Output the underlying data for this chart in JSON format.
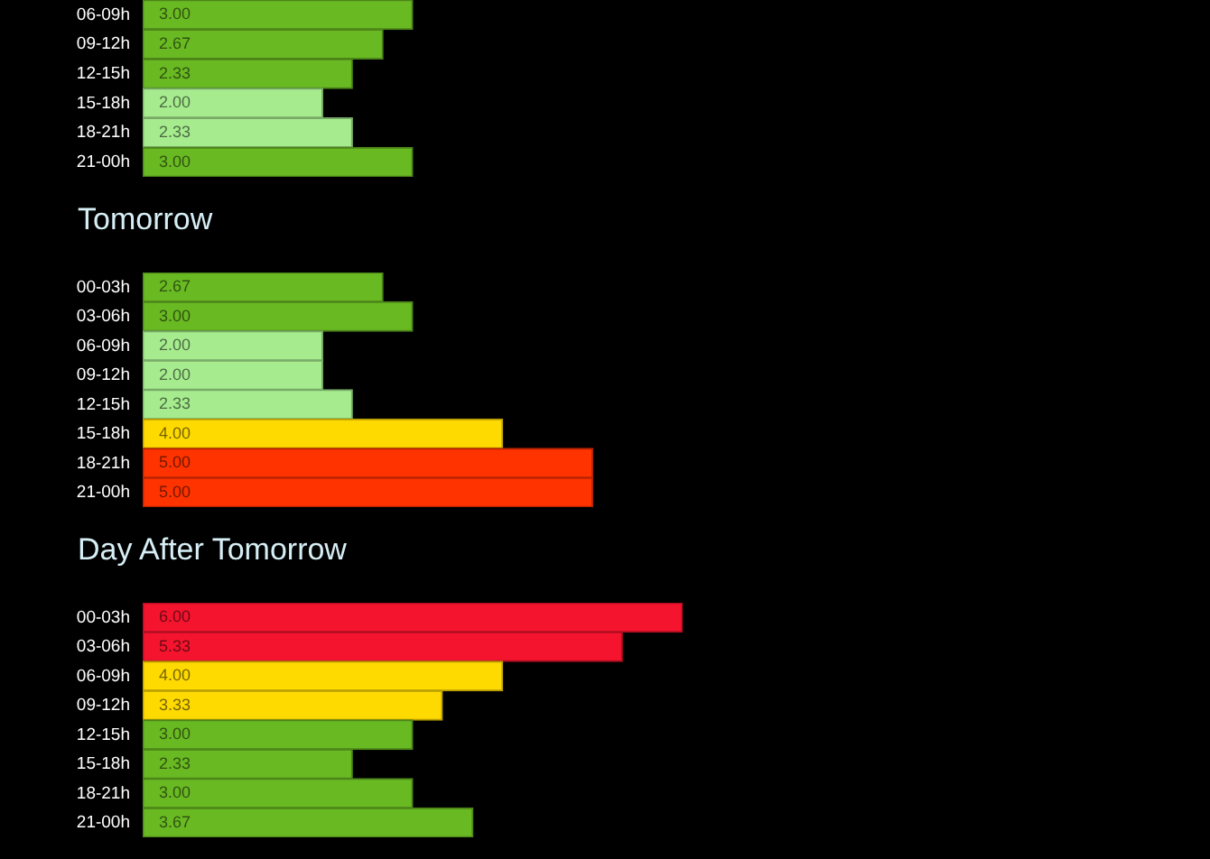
{
  "chart_data": [
    {
      "type": "bar",
      "orientation": "horizontal",
      "categories": [
        "06-09h",
        "09-12h",
        "12-15h",
        "15-18h",
        "18-21h",
        "21-00h"
      ],
      "values": [
        3,
        2.67,
        2.33,
        2,
        2.33,
        3
      ],
      "value_labels": [
        "3.00",
        "2.67",
        "2.33",
        "2.00",
        "2.33",
        "3.00"
      ],
      "colors": [
        "#69b923",
        "#69b923",
        "#69b923",
        "#a6ec8f",
        "#a6ec8f",
        "#69b923"
      ],
      "tick_labels": "y"
    },
    {
      "type": "bar",
      "title": "Tomorrow",
      "orientation": "horizontal",
      "categories": [
        "00-03h",
        "03-06h",
        "06-09h",
        "09-12h",
        "12-15h",
        "15-18h",
        "18-21h",
        "21-00h"
      ],
      "values": [
        2.67,
        3,
        2,
        2,
        2.33,
        4,
        5,
        5
      ],
      "value_labels": [
        "2.67",
        "3.00",
        "2.00",
        "2.00",
        "2.33",
        "4.00",
        "5.00",
        "5.00"
      ],
      "colors": [
        "#69b923",
        "#69b923",
        "#a6ec8f",
        "#a6ec8f",
        "#a6ec8f",
        "#ffda00",
        "#ff3300",
        "#ff3300"
      ],
      "tick_labels": "y"
    },
    {
      "type": "bar",
      "title": "Day After Tomorrow",
      "orientation": "horizontal",
      "categories": [
        "00-03h",
        "03-06h",
        "06-09h",
        "09-12h",
        "12-15h",
        "15-18h",
        "18-21h",
        "21-00h"
      ],
      "values": [
        6,
        5.33,
        4,
        3.33,
        3,
        2.33,
        3,
        3.67
      ],
      "value_labels": [
        "6.00",
        "5.33",
        "4.00",
        "3.33",
        "3.00",
        "2.33",
        "3.00",
        "3.67"
      ],
      "colors": [
        "#f5142e",
        "#f5142e",
        "#ffda00",
        "#ffda00",
        "#69b923",
        "#69b923",
        "#69b923",
        "#69b923"
      ],
      "tick_labels": "y"
    }
  ]
}
